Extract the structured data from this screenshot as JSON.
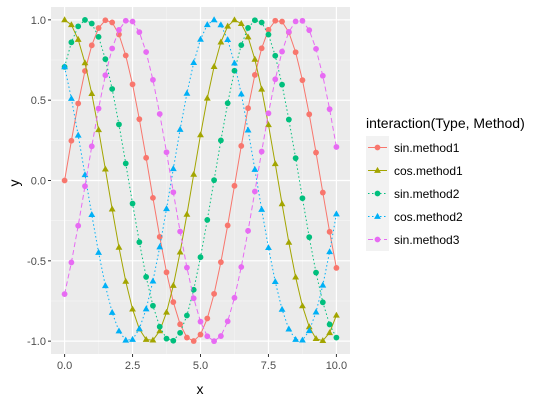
{
  "chart_data": {
    "type": "line",
    "xlabel": "x",
    "ylabel": "y",
    "xlim": [
      -0.5,
      10.5
    ],
    "ylim": [
      -1.08,
      1.08
    ],
    "x_ticks": [
      0,
      2.5,
      5,
      7.5,
      10
    ],
    "x_tick_labels": [
      "0.0",
      "2.5",
      "5.0",
      "7.5",
      "10.0"
    ],
    "y_ticks": [
      -1,
      -0.5,
      0,
      0.5,
      1
    ],
    "y_tick_labels": [
      "-1.0",
      "-0.5",
      "0.0",
      "0.5",
      "1.0"
    ],
    "grid": true,
    "x_sampling": {
      "start": 0,
      "end": 10,
      "step": 0.25
    },
    "legend": {
      "title": "interaction(Type, Method)",
      "placement": "right"
    },
    "series": [
      {
        "name": "sin.method1",
        "function": "sin(x)",
        "color": "#F8766D",
        "marker": "circle",
        "line": "solid"
      },
      {
        "name": "cos.method1",
        "function": "cos(x)",
        "color": "#A3A500",
        "marker": "triangle",
        "line": "solid"
      },
      {
        "name": "sin.method2",
        "function": "sin(x + pi/4)",
        "color": "#00BF7D",
        "marker": "circle",
        "line": "dotted"
      },
      {
        "name": "cos.method2",
        "function": "cos(x + pi/4)",
        "color": "#00B0F6",
        "marker": "triangle",
        "line": "dotted"
      },
      {
        "name": "sin.method3",
        "function": "sin(x - pi/4)",
        "color": "#E76BF3",
        "marker": "circle",
        "line": "dashed"
      }
    ]
  }
}
